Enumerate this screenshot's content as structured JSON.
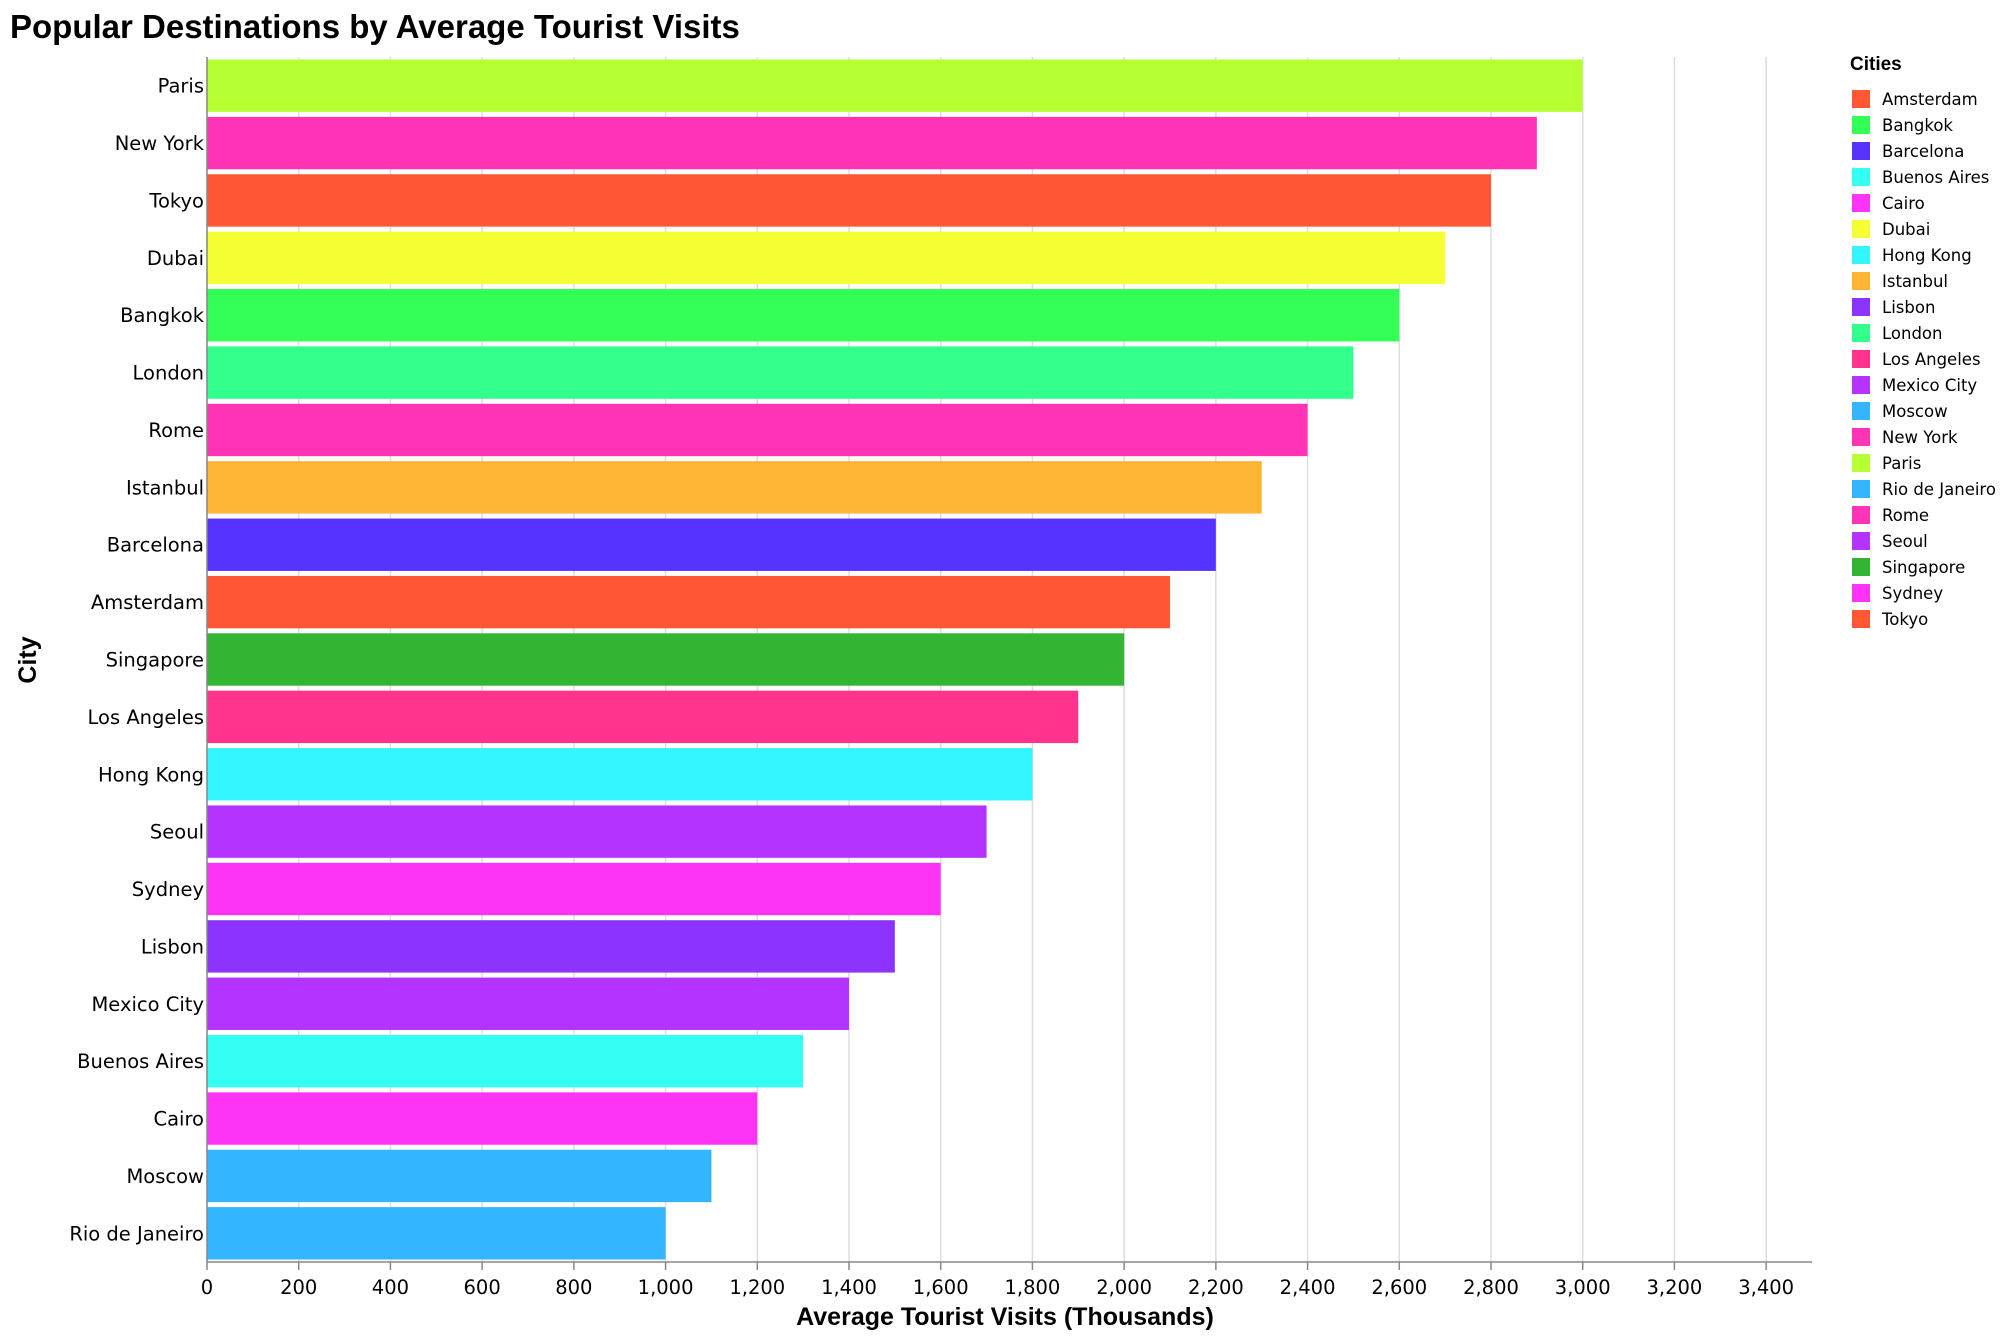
{
  "chart_data": {
    "type": "bar",
    "orientation": "horizontal",
    "title": "Popular Destinations by Average Tourist Visits",
    "xlabel": "Average Tourist Visits (Thousands)",
    "ylabel": "City",
    "xlim": [
      0,
      3500
    ],
    "x_ticks": [
      0,
      200,
      400,
      600,
      800,
      1000,
      1200,
      1400,
      1600,
      1800,
      2000,
      2200,
      2400,
      2600,
      2800,
      3000,
      3200,
      3400
    ],
    "grid": true,
    "legend": {
      "title": "Cities",
      "placement": "right"
    },
    "categories": [
      "Paris",
      "New York",
      "Tokyo",
      "Dubai",
      "Bangkok",
      "London",
      "Rome",
      "Istanbul",
      "Barcelona",
      "Amsterdam",
      "Singapore",
      "Los Angeles",
      "Hong Kong",
      "Seoul",
      "Sydney",
      "Lisbon",
      "Mexico City",
      "Buenos Aires",
      "Cairo",
      "Moscow",
      "Rio de Janeiro"
    ],
    "values": [
      3000,
      2900,
      2800,
      2700,
      2600,
      2500,
      2400,
      2300,
      2200,
      2100,
      2000,
      1900,
      1800,
      1700,
      1600,
      1500,
      1400,
      1300,
      1200,
      1100,
      1000
    ],
    "legend_entries": [
      "Amsterdam",
      "Bangkok",
      "Barcelona",
      "Buenos Aires",
      "Cairo",
      "Dubai",
      "Hong Kong",
      "Istanbul",
      "Lisbon",
      "London",
      "Los Angeles",
      "Mexico City",
      "Moscow",
      "New York",
      "Paris",
      "Rio de Janeiro",
      "Rome",
      "Seoul",
      "Singapore",
      "Sydney",
      "Tokyo"
    ],
    "colors": {
      "Amsterdam": "#ff5733",
      "Bangkok": "#33ff57",
      "Barcelona": "#5733ff",
      "Buenos Aires": "#33fff5",
      "Cairo": "#ff33f5",
      "Dubai": "#f5ff33",
      "Hong Kong": "#33f5ff",
      "Istanbul": "#ffb533",
      "Lisbon": "#8c33ff",
      "London": "#33ff8c",
      "Los Angeles": "#ff338c",
      "Mexico City": "#b533ff",
      "Moscow": "#33b5ff",
      "New York": "#ff33b5",
      "Paris": "#b5ff33",
      "Rio de Janeiro": "#33b5ff",
      "Rome": "#ff33b5",
      "Seoul": "#b533ff",
      "Singapore": "#33b533",
      "Sydney": "#ff33f5",
      "Tokyo": "#ff5733"
    }
  }
}
